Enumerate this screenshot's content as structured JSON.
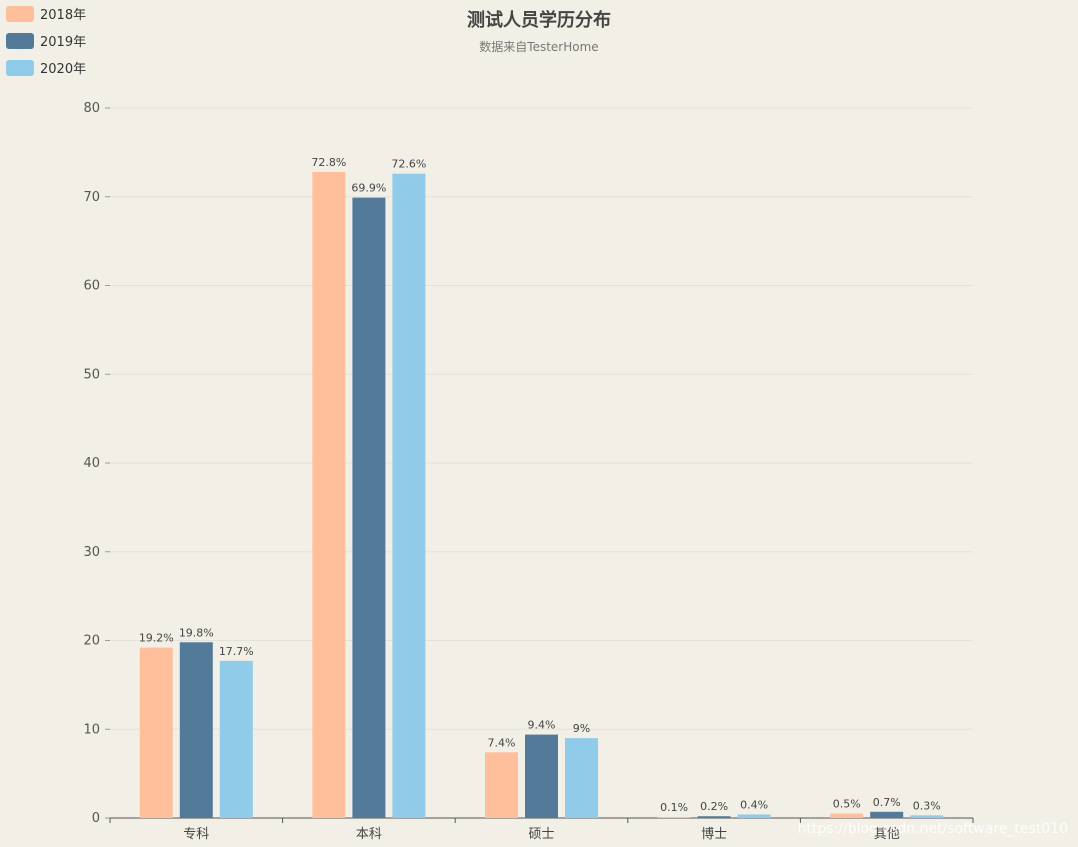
{
  "chart_data": {
    "type": "bar",
    "title": "测试人员学历分布",
    "subtitle": "数据来自TesterHome",
    "categories": [
      "专科",
      "本科",
      "硕士",
      "博士",
      "其他"
    ],
    "series": [
      {
        "name": "2018年",
        "values": [
          19.2,
          72.8,
          7.4,
          0.1,
          0.5
        ],
        "labels": [
          "19.2%",
          "72.8%",
          "7.4%",
          "0.1%",
          "0.5%"
        ],
        "color": "#ffbf9a"
      },
      {
        "name": "2019年",
        "values": [
          19.8,
          69.9,
          9.4,
          0.2,
          0.7
        ],
        "labels": [
          "19.8%",
          "69.9%",
          "9.4%",
          "0.2%",
          "0.7%"
        ],
        "color": "#537b99"
      },
      {
        "name": "2020年",
        "values": [
          17.7,
          72.6,
          9,
          0.4,
          0.3
        ],
        "labels": [
          "17.7%",
          "72.6%",
          "9%",
          "0.4%",
          "0.3%"
        ],
        "color": "#90cbea"
      }
    ],
    "ylim": [
      0,
      80
    ],
    "yticks": [
      0,
      10,
      20,
      30,
      40,
      50,
      60,
      70,
      80
    ],
    "grid": true,
    "legend_position": "top-left"
  },
  "watermark": "https://blog.csdn.net/software_test010"
}
